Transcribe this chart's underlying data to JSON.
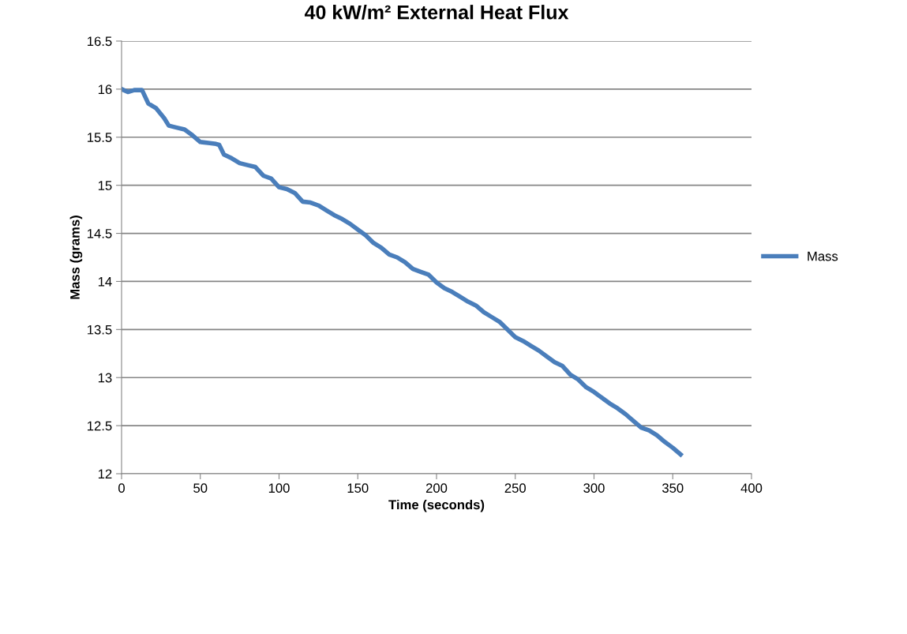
{
  "chart_data": {
    "type": "line",
    "title": "40 kW/m² External Heat Flux",
    "xlabel": "Time (seconds)",
    "ylabel": "Mass (grams)",
    "x": [
      0,
      4,
      8,
      13,
      17,
      22,
      27,
      30,
      35,
      40,
      45,
      50,
      55,
      60,
      62,
      65,
      70,
      75,
      80,
      85,
      90,
      95,
      100,
      105,
      110,
      115,
      120,
      125,
      130,
      135,
      140,
      145,
      150,
      155,
      160,
      165,
      170,
      175,
      180,
      185,
      190,
      195,
      200,
      205,
      210,
      215,
      220,
      225,
      230,
      235,
      240,
      245,
      250,
      255,
      260,
      265,
      270,
      275,
      280,
      285,
      290,
      295,
      300,
      305,
      310,
      315,
      320,
      325,
      330,
      335,
      340,
      345,
      350,
      355
    ],
    "series": [
      {
        "name": "Mass",
        "color": "#4a7ebb",
        "values": [
          16.0,
          15.97,
          15.99,
          15.99,
          15.85,
          15.8,
          15.7,
          15.62,
          15.6,
          15.58,
          15.52,
          15.45,
          15.44,
          15.43,
          15.42,
          15.32,
          15.28,
          15.23,
          15.21,
          15.19,
          15.1,
          15.07,
          14.98,
          14.96,
          14.92,
          14.83,
          14.82,
          14.79,
          14.74,
          14.69,
          14.65,
          14.6,
          14.54,
          14.48,
          14.4,
          14.35,
          14.28,
          14.25,
          14.2,
          14.13,
          14.1,
          14.07,
          13.99,
          13.93,
          13.89,
          13.84,
          13.79,
          13.75,
          13.68,
          13.63,
          13.58,
          13.5,
          13.42,
          13.38,
          13.33,
          13.28,
          13.22,
          13.16,
          13.12,
          13.03,
          12.98,
          12.9,
          12.85,
          12.79,
          12.73,
          12.68,
          12.62,
          12.55,
          12.48,
          12.45,
          12.4,
          12.33,
          12.27,
          12.2
        ]
      }
    ],
    "xlim": [
      0,
      400
    ],
    "xticks": [
      0,
      50,
      100,
      150,
      200,
      250,
      300,
      350,
      400
    ],
    "ylim": [
      12,
      16.5
    ],
    "yticks": [
      12,
      {
        "value": 12.5,
        "label": "12.5"
      },
      13,
      {
        "value": 13.5,
        "label": "13.5"
      },
      14,
      {
        "value": 14.5,
        "label": "14.5"
      },
      15,
      {
        "value": 15.5,
        "label": "15.5"
      },
      16,
      {
        "value": 16.5,
        "label": "16.5"
      }
    ],
    "grid": "y",
    "legend": "right",
    "marker": "none",
    "line_style": "solid"
  }
}
